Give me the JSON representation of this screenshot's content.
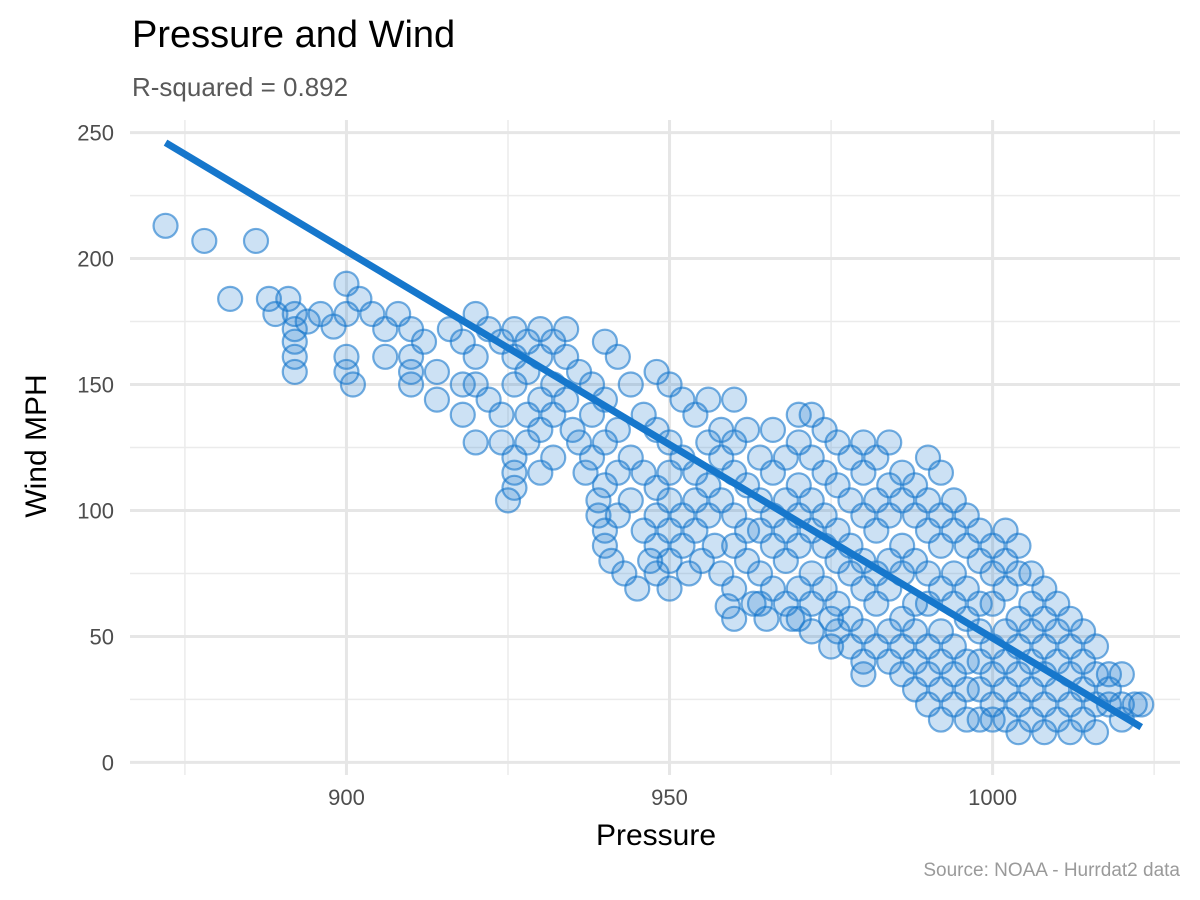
{
  "chart_data": {
    "type": "scatter",
    "title": "Pressure and Wind",
    "subtitle": "R-squared =  0.892",
    "caption": "Source: NOAA - Hurrdat2 data",
    "xlabel": "Pressure",
    "ylabel": "Wind MPH",
    "xlim": [
      866.5,
      1029
    ],
    "ylim": [
      -5,
      255
    ],
    "x_ticks": [
      900,
      950,
      1000
    ],
    "y_ticks": [
      0,
      50,
      100,
      150,
      200,
      250
    ],
    "grid": true,
    "point_color": "#1677cc",
    "line_color": "#1677cc",
    "trend_line": {
      "x": [
        872,
        1023
      ],
      "y": [
        246,
        14
      ]
    },
    "points": [
      [
        872,
        213
      ],
      [
        878,
        207
      ],
      [
        882,
        184
      ],
      [
        886,
        207
      ],
      [
        888,
        184
      ],
      [
        889,
        178
      ],
      [
        891,
        184
      ],
      [
        892,
        178
      ],
      [
        892,
        172
      ],
      [
        892,
        167
      ],
      [
        892,
        161
      ],
      [
        892,
        155
      ],
      [
        894,
        175
      ],
      [
        896,
        178
      ],
      [
        898,
        173
      ],
      [
        900,
        190
      ],
      [
        900,
        178
      ],
      [
        900,
        161
      ],
      [
        900,
        155
      ],
      [
        901,
        150
      ],
      [
        902,
        184
      ],
      [
        904,
        178
      ],
      [
        906,
        172
      ],
      [
        906,
        161
      ],
      [
        908,
        178
      ],
      [
        910,
        172
      ],
      [
        910,
        161
      ],
      [
        910,
        155
      ],
      [
        910,
        150
      ],
      [
        912,
        167
      ],
      [
        914,
        155
      ],
      [
        914,
        144
      ],
      [
        916,
        172
      ],
      [
        918,
        167
      ],
      [
        918,
        150
      ],
      [
        918,
        138
      ],
      [
        920,
        178
      ],
      [
        920,
        161
      ],
      [
        920,
        150
      ],
      [
        920,
        127
      ],
      [
        922,
        172
      ],
      [
        922,
        144
      ],
      [
        924,
        167
      ],
      [
        924,
        138
      ],
      [
        924,
        127
      ],
      [
        925,
        104
      ],
      [
        926,
        172
      ],
      [
        926,
        161
      ],
      [
        926,
        150
      ],
      [
        926,
        121
      ],
      [
        926,
        115
      ],
      [
        926,
        109
      ],
      [
        928,
        167
      ],
      [
        928,
        155
      ],
      [
        928,
        138
      ],
      [
        928,
        127
      ],
      [
        930,
        172
      ],
      [
        930,
        161
      ],
      [
        930,
        144
      ],
      [
        930,
        132
      ],
      [
        930,
        115
      ],
      [
        932,
        167
      ],
      [
        932,
        150
      ],
      [
        932,
        138
      ],
      [
        932,
        121
      ],
      [
        934,
        172
      ],
      [
        934,
        161
      ],
      [
        934,
        144
      ],
      [
        935,
        132
      ],
      [
        936,
        155
      ],
      [
        936,
        127
      ],
      [
        937,
        115
      ],
      [
        938,
        150
      ],
      [
        938,
        138
      ],
      [
        938,
        121
      ],
      [
        939,
        104
      ],
      [
        939,
        98
      ],
      [
        940,
        167
      ],
      [
        940,
        144
      ],
      [
        940,
        127
      ],
      [
        940,
        110
      ],
      [
        940,
        92
      ],
      [
        940,
        86
      ],
      [
        941,
        80
      ],
      [
        942,
        161
      ],
      [
        942,
        132
      ],
      [
        942,
        115
      ],
      [
        942,
        98
      ],
      [
        943,
        75
      ],
      [
        944,
        150
      ],
      [
        944,
        121
      ],
      [
        944,
        104
      ],
      [
        945,
        69
      ],
      [
        946,
        138
      ],
      [
        946,
        115
      ],
      [
        946,
        92
      ],
      [
        947,
        80
      ],
      [
        948,
        155
      ],
      [
        948,
        132
      ],
      [
        948,
        109
      ],
      [
        948,
        98
      ],
      [
        948,
        86
      ],
      [
        948,
        75
      ],
      [
        950,
        150
      ],
      [
        950,
        127
      ],
      [
        950,
        115
      ],
      [
        950,
        104
      ],
      [
        950,
        92
      ],
      [
        950,
        80
      ],
      [
        950,
        69
      ],
      [
        952,
        144
      ],
      [
        952,
        121
      ],
      [
        952,
        98
      ],
      [
        952,
        86
      ],
      [
        953,
        75
      ],
      [
        954,
        138
      ],
      [
        954,
        115
      ],
      [
        954,
        104
      ],
      [
        954,
        92
      ],
      [
        955,
        80
      ],
      [
        956,
        144
      ],
      [
        956,
        127
      ],
      [
        956,
        110
      ],
      [
        956,
        98
      ],
      [
        957,
        86
      ],
      [
        958,
        132
      ],
      [
        958,
        121
      ],
      [
        958,
        104
      ],
      [
        958,
        75
      ],
      [
        959,
        62
      ],
      [
        960,
        144
      ],
      [
        960,
        127
      ],
      [
        960,
        115
      ],
      [
        960,
        98
      ],
      [
        960,
        86
      ],
      [
        960,
        69
      ],
      [
        960,
        57
      ],
      [
        962,
        132
      ],
      [
        962,
        110
      ],
      [
        962,
        92
      ],
      [
        962,
        80
      ],
      [
        963,
        63
      ],
      [
        964,
        121
      ],
      [
        964,
        104
      ],
      [
        964,
        92
      ],
      [
        964,
        75
      ],
      [
        964,
        63
      ],
      [
        965,
        57
      ],
      [
        966,
        132
      ],
      [
        966,
        115
      ],
      [
        966,
        98
      ],
      [
        966,
        86
      ],
      [
        966,
        69
      ],
      [
        968,
        121
      ],
      [
        968,
        104
      ],
      [
        968,
        92
      ],
      [
        968,
        80
      ],
      [
        968,
        63
      ],
      [
        969,
        57
      ],
      [
        970,
        138
      ],
      [
        970,
        127
      ],
      [
        970,
        110
      ],
      [
        970,
        98
      ],
      [
        970,
        86
      ],
      [
        970,
        69
      ],
      [
        970,
        57
      ],
      [
        972,
        138
      ],
      [
        972,
        121
      ],
      [
        972,
        104
      ],
      [
        972,
        92
      ],
      [
        972,
        75
      ],
      [
        972,
        63
      ],
      [
        972,
        52
      ],
      [
        974,
        132
      ],
      [
        974,
        115
      ],
      [
        974,
        98
      ],
      [
        974,
        86
      ],
      [
        974,
        69
      ],
      [
        975,
        57
      ],
      [
        975,
        46
      ],
      [
        976,
        127
      ],
      [
        976,
        110
      ],
      [
        976,
        92
      ],
      [
        976,
        80
      ],
      [
        976,
        63
      ],
      [
        976,
        52
      ],
      [
        978,
        121
      ],
      [
        978,
        104
      ],
      [
        978,
        86
      ],
      [
        978,
        75
      ],
      [
        978,
        57
      ],
      [
        978,
        46
      ],
      [
        980,
        127
      ],
      [
        980,
        115
      ],
      [
        980,
        98
      ],
      [
        980,
        80
      ],
      [
        980,
        69
      ],
      [
        980,
        52
      ],
      [
        980,
        40
      ],
      [
        980,
        35
      ],
      [
        982,
        121
      ],
      [
        982,
        104
      ],
      [
        982,
        92
      ],
      [
        982,
        75
      ],
      [
        982,
        63
      ],
      [
        982,
        46
      ],
      [
        984,
        127
      ],
      [
        984,
        110
      ],
      [
        984,
        98
      ],
      [
        984,
        80
      ],
      [
        984,
        69
      ],
      [
        984,
        52
      ],
      [
        984,
        40
      ],
      [
        986,
        115
      ],
      [
        986,
        104
      ],
      [
        986,
        86
      ],
      [
        986,
        75
      ],
      [
        986,
        57
      ],
      [
        986,
        46
      ],
      [
        986,
        35
      ],
      [
        988,
        110
      ],
      [
        988,
        98
      ],
      [
        988,
        80
      ],
      [
        988,
        63
      ],
      [
        988,
        52
      ],
      [
        988,
        40
      ],
      [
        988,
        29
      ],
      [
        990,
        121
      ],
      [
        990,
        104
      ],
      [
        990,
        92
      ],
      [
        990,
        75
      ],
      [
        990,
        63
      ],
      [
        990,
        46
      ],
      [
        990,
        35
      ],
      [
        990,
        23
      ],
      [
        992,
        115
      ],
      [
        992,
        98
      ],
      [
        992,
        86
      ],
      [
        992,
        69
      ],
      [
        992,
        52
      ],
      [
        992,
        40
      ],
      [
        992,
        29
      ],
      [
        992,
        17
      ],
      [
        994,
        104
      ],
      [
        994,
        92
      ],
      [
        994,
        75
      ],
      [
        994,
        63
      ],
      [
        994,
        46
      ],
      [
        994,
        35
      ],
      [
        994,
        23
      ],
      [
        996,
        98
      ],
      [
        996,
        86
      ],
      [
        996,
        69
      ],
      [
        996,
        57
      ],
      [
        996,
        40
      ],
      [
        996,
        29
      ],
      [
        996,
        17
      ],
      [
        998,
        92
      ],
      [
        998,
        80
      ],
      [
        998,
        63
      ],
      [
        998,
        52
      ],
      [
        998,
        40
      ],
      [
        998,
        29
      ],
      [
        998,
        17
      ],
      [
        1000,
        86
      ],
      [
        1000,
        75
      ],
      [
        1000,
        63
      ],
      [
        1000,
        46
      ],
      [
        1000,
        35
      ],
      [
        1000,
        23
      ],
      [
        1000,
        17
      ],
      [
        1002,
        92
      ],
      [
        1002,
        80
      ],
      [
        1002,
        69
      ],
      [
        1002,
        52
      ],
      [
        1002,
        40
      ],
      [
        1002,
        29
      ],
      [
        1002,
        17
      ],
      [
        1004,
        86
      ],
      [
        1004,
        75
      ],
      [
        1004,
        57
      ],
      [
        1004,
        46
      ],
      [
        1004,
        35
      ],
      [
        1004,
        23
      ],
      [
        1004,
        12
      ],
      [
        1006,
        75
      ],
      [
        1006,
        63
      ],
      [
        1006,
        52
      ],
      [
        1006,
        40
      ],
      [
        1006,
        29
      ],
      [
        1006,
        17
      ],
      [
        1008,
        69
      ],
      [
        1008,
        57
      ],
      [
        1008,
        46
      ],
      [
        1008,
        35
      ],
      [
        1008,
        23
      ],
      [
        1008,
        12
      ],
      [
        1010,
        63
      ],
      [
        1010,
        52
      ],
      [
        1010,
        40
      ],
      [
        1010,
        29
      ],
      [
        1010,
        17
      ],
      [
        1012,
        57
      ],
      [
        1012,
        46
      ],
      [
        1012,
        35
      ],
      [
        1012,
        23
      ],
      [
        1012,
        12
      ],
      [
        1014,
        52
      ],
      [
        1014,
        40
      ],
      [
        1014,
        29
      ],
      [
        1014,
        17
      ],
      [
        1016,
        46
      ],
      [
        1016,
        35
      ],
      [
        1016,
        23
      ],
      [
        1016,
        12
      ],
      [
        1018,
        35
      ],
      [
        1018,
        29
      ],
      [
        1018,
        23
      ],
      [
        1020,
        35
      ],
      [
        1020,
        23
      ],
      [
        1020,
        17
      ],
      [
        1022,
        23
      ],
      [
        1023,
        23
      ]
    ]
  }
}
